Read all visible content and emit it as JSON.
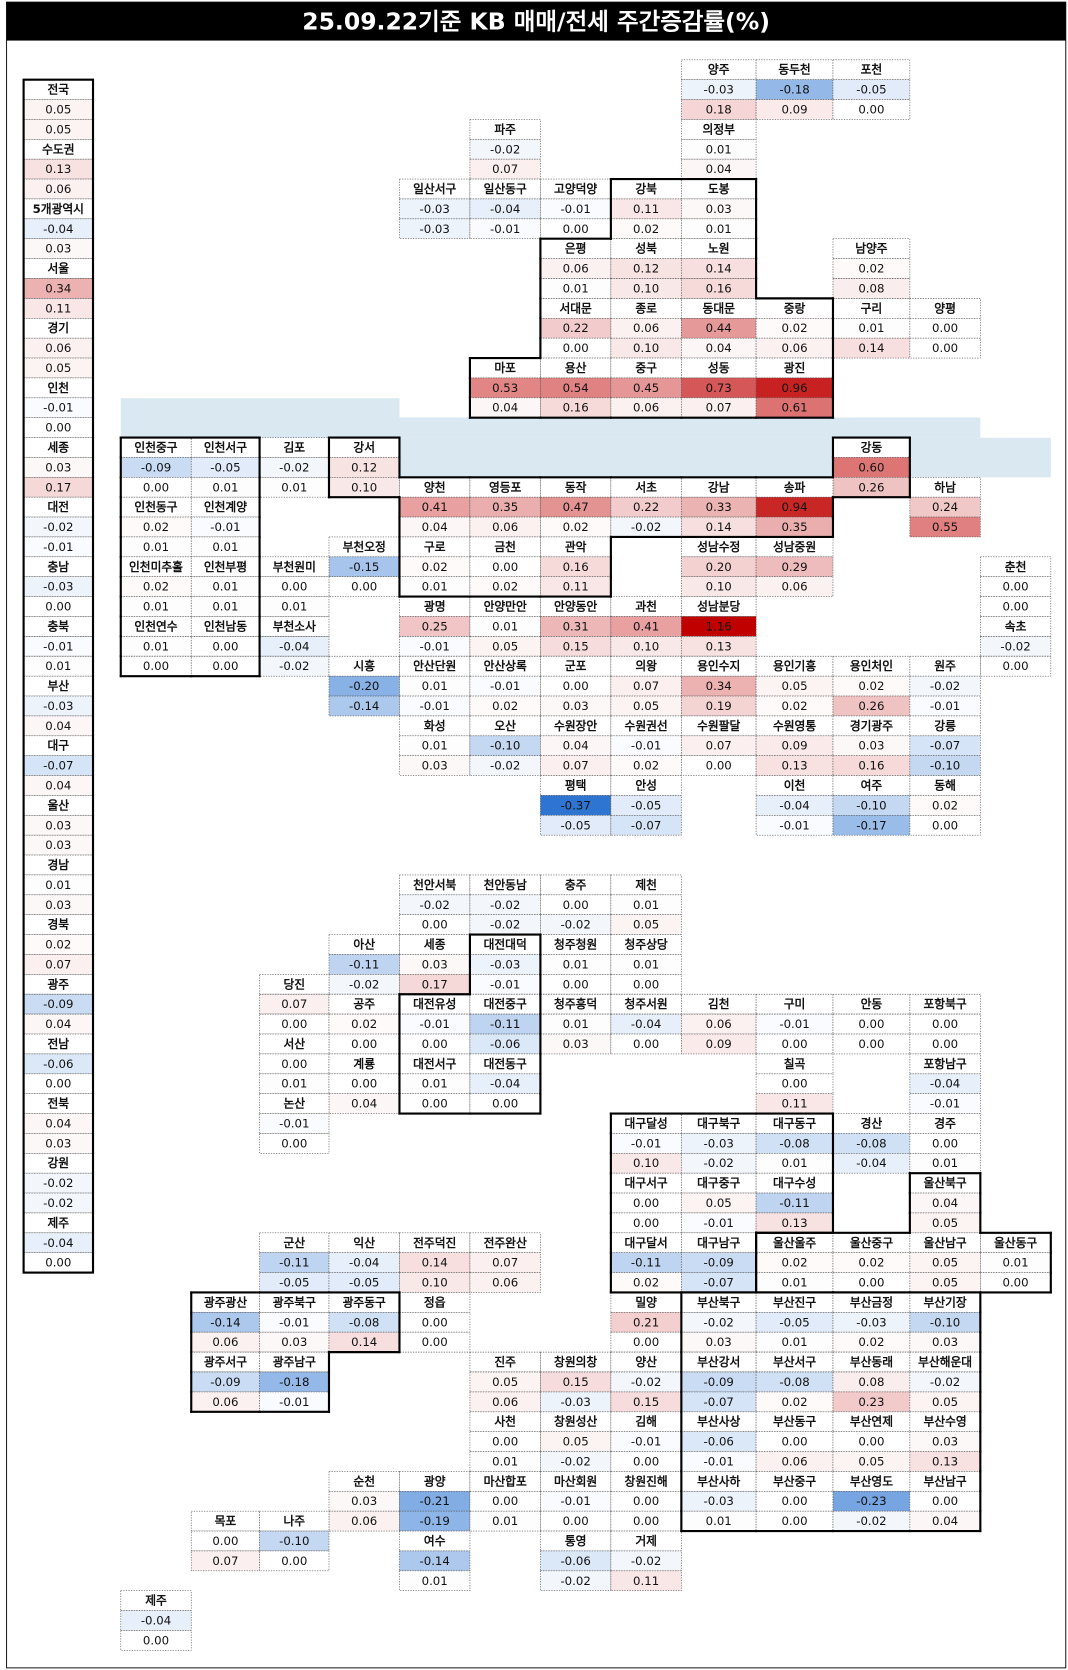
{
  "title": "25.09.22기준 KB 매매/전세 주간증감률(%)",
  "colors": {
    "positive": "#c00000",
    "negative": "#2e75d2",
    "river": "#d9e8f1"
  },
  "summary": [
    {
      "name": "전국",
      "sale": "0.05",
      "jeonse": "0.05"
    },
    {
      "name": "수도권",
      "sale": "0.13",
      "jeonse": "0.06"
    },
    {
      "name": "5개광역시",
      "sale": "-0.04",
      "jeonse": "0.03"
    },
    {
      "name": "서울",
      "sale": "0.34",
      "jeonse": "0.11"
    },
    {
      "name": "경기",
      "sale": "0.06",
      "jeonse": "0.05"
    },
    {
      "name": "인천",
      "sale": "-0.01",
      "jeonse": "0.00"
    },
    {
      "name": "세종",
      "sale": "0.03",
      "jeonse": "0.17"
    },
    {
      "name": "대전",
      "sale": "-0.02",
      "jeonse": "-0.01"
    },
    {
      "name": "충남",
      "sale": "-0.03",
      "jeonse": "0.00"
    },
    {
      "name": "충북",
      "sale": "-0.01",
      "jeonse": "0.01"
    },
    {
      "name": "부산",
      "sale": "-0.03",
      "jeonse": "0.04"
    },
    {
      "name": "대구",
      "sale": "-0.07",
      "jeonse": "0.04"
    },
    {
      "name": "울산",
      "sale": "0.03",
      "jeonse": "0.03"
    },
    {
      "name": "경남",
      "sale": "0.01",
      "jeonse": "0.03"
    },
    {
      "name": "경북",
      "sale": "0.02",
      "jeonse": "0.07"
    },
    {
      "name": "광주",
      "sale": "-0.09",
      "jeonse": "0.04"
    },
    {
      "name": "전남",
      "sale": "-0.06",
      "jeonse": "0.00"
    },
    {
      "name": "전북",
      "sale": "0.04",
      "jeonse": "0.03"
    },
    {
      "name": "강원",
      "sale": "-0.02",
      "jeonse": "-0.02"
    },
    {
      "name": "제주",
      "sale": "-0.04",
      "jeonse": "0.00"
    }
  ],
  "regions": [
    {
      "name": "양주",
      "sale": "-0.03",
      "jeonse": "0.18"
    },
    {
      "name": "동두천",
      "sale": "-0.18",
      "jeonse": "0.09"
    },
    {
      "name": "포천",
      "sale": "-0.05",
      "jeonse": "0.00"
    },
    {
      "name": "파주",
      "sale": "-0.02",
      "jeonse": "0.07"
    },
    {
      "name": "의정부",
      "sale": "0.01",
      "jeonse": "0.04"
    },
    {
      "name": "일산서구",
      "sale": "-0.03",
      "jeonse": "-0.03"
    },
    {
      "name": "일산동구",
      "sale": "-0.04",
      "jeonse": "-0.01"
    },
    {
      "name": "고양덕양",
      "sale": "-0.01",
      "jeonse": "0.00"
    },
    {
      "name": "강북",
      "sale": "0.11",
      "jeonse": "0.02"
    },
    {
      "name": "도봉",
      "sale": "0.03",
      "jeonse": "0.01"
    },
    {
      "name": "은평",
      "sale": "0.06",
      "jeonse": "0.01"
    },
    {
      "name": "성북",
      "sale": "0.12",
      "jeonse": "0.10"
    },
    {
      "name": "노원",
      "sale": "0.14",
      "jeonse": "0.16"
    },
    {
      "name": "남양주",
      "sale": "0.02",
      "jeonse": "0.08"
    },
    {
      "name": "서대문",
      "sale": "0.22",
      "jeonse": "0.00"
    },
    {
      "name": "종로",
      "sale": "0.06",
      "jeonse": "0.10"
    },
    {
      "name": "동대문",
      "sale": "0.44",
      "jeonse": "0.04"
    },
    {
      "name": "중랑",
      "sale": "0.02",
      "jeonse": "0.06"
    },
    {
      "name": "구리",
      "sale": "0.01",
      "jeonse": "0.14"
    },
    {
      "name": "양평",
      "sale": "0.00",
      "jeonse": "0.00"
    },
    {
      "name": "마포",
      "sale": "0.53",
      "jeonse": "0.04"
    },
    {
      "name": "용산",
      "sale": "0.54",
      "jeonse": "0.16"
    },
    {
      "name": "중구",
      "sale": "0.45",
      "jeonse": "0.06"
    },
    {
      "name": "성동",
      "sale": "0.73",
      "jeonse": "0.07"
    },
    {
      "name": "광진",
      "sale": "0.96",
      "jeonse": "0.61"
    },
    {
      "name": "인천중구",
      "sale": "-0.09",
      "jeonse": "0.00"
    },
    {
      "name": "인천서구",
      "sale": "-0.05",
      "jeonse": "0.01"
    },
    {
      "name": "김포",
      "sale": "-0.02",
      "jeonse": "0.01"
    },
    {
      "name": "강서",
      "sale": "0.12",
      "jeonse": "0.10"
    },
    {
      "name": "강동",
      "sale": "0.60",
      "jeonse": "0.26"
    },
    {
      "name": "양천",
      "sale": "0.41",
      "jeonse": "0.04"
    },
    {
      "name": "영등포",
      "sale": "0.35",
      "jeonse": "0.06"
    },
    {
      "name": "동작",
      "sale": "0.47",
      "jeonse": "0.02"
    },
    {
      "name": "서초",
      "sale": "0.22",
      "jeonse": "-0.02"
    },
    {
      "name": "강남",
      "sale": "0.33",
      "jeonse": "0.14"
    },
    {
      "name": "송파",
      "sale": "0.94",
      "jeonse": "0.35"
    },
    {
      "name": "하남",
      "sale": "0.24",
      "jeonse": "0.55"
    },
    {
      "name": "인천동구",
      "sale": "0.02",
      "jeonse": "0.01"
    },
    {
      "name": "인천계양",
      "sale": "-0.01",
      "jeonse": "0.01"
    },
    {
      "name": "부천오정",
      "sale": "-0.15",
      "jeonse": "0.00"
    },
    {
      "name": "구로",
      "sale": "0.02",
      "jeonse": "0.01"
    },
    {
      "name": "금천",
      "sale": "0.00",
      "jeonse": "0.02"
    },
    {
      "name": "관악",
      "sale": "0.16",
      "jeonse": "0.11"
    },
    {
      "name": "성남수정",
      "sale": "0.20",
      "jeonse": "0.10"
    },
    {
      "name": "성남중원",
      "sale": "0.29",
      "jeonse": "0.06"
    },
    {
      "name": "인천미추홀",
      "sale": "0.02",
      "jeonse": "0.01"
    },
    {
      "name": "인천부평",
      "sale": "0.01",
      "jeonse": "0.01"
    },
    {
      "name": "부천원미",
      "sale": "0.00",
      "jeonse": "0.01"
    },
    {
      "name": "춘천",
      "sale": "0.00",
      "jeonse": "0.00"
    },
    {
      "name": "광명",
      "sale": "0.25",
      "jeonse": "-0.01"
    },
    {
      "name": "안양만안",
      "sale": "0.01",
      "jeonse": "0.05"
    },
    {
      "name": "안양동안",
      "sale": "0.31",
      "jeonse": "0.15"
    },
    {
      "name": "과천",
      "sale": "0.41",
      "jeonse": "0.10"
    },
    {
      "name": "성남분당",
      "sale": "1.16",
      "jeonse": "0.13"
    },
    {
      "name": "인천연수",
      "sale": "0.01",
      "jeonse": "0.00"
    },
    {
      "name": "인천남동",
      "sale": "0.00",
      "jeonse": "0.00"
    },
    {
      "name": "부천소사",
      "sale": "-0.04",
      "jeonse": "-0.02"
    },
    {
      "name": "속초",
      "sale": "-0.02",
      "jeonse": "0.00"
    },
    {
      "name": "시흥",
      "sale": "-0.20",
      "jeonse": "-0.14"
    },
    {
      "name": "안산단원",
      "sale": "0.01",
      "jeonse": "-0.01"
    },
    {
      "name": "안산상록",
      "sale": "-0.01",
      "jeonse": "0.02"
    },
    {
      "name": "군포",
      "sale": "0.00",
      "jeonse": "0.03"
    },
    {
      "name": "의왕",
      "sale": "0.07",
      "jeonse": "0.05"
    },
    {
      "name": "용인수지",
      "sale": "0.34",
      "jeonse": "0.19"
    },
    {
      "name": "용인기흥",
      "sale": "0.05",
      "jeonse": "0.02"
    },
    {
      "name": "용인처인",
      "sale": "0.02",
      "jeonse": "0.26"
    },
    {
      "name": "원주",
      "sale": "-0.02",
      "jeonse": "-0.01"
    },
    {
      "name": "화성",
      "sale": "0.01",
      "jeonse": "0.03"
    },
    {
      "name": "오산",
      "sale": "-0.10",
      "jeonse": "-0.02"
    },
    {
      "name": "수원장안",
      "sale": "0.04",
      "jeonse": "0.07"
    },
    {
      "name": "수원권선",
      "sale": "-0.01",
      "jeonse": "0.02"
    },
    {
      "name": "수원팔달",
      "sale": "0.07",
      "jeonse": "0.00"
    },
    {
      "name": "수원영통",
      "sale": "0.09",
      "jeonse": "0.13"
    },
    {
      "name": "경기광주",
      "sale": "0.03",
      "jeonse": "0.16"
    },
    {
      "name": "강릉",
      "sale": "-0.07",
      "jeonse": "-0.10"
    },
    {
      "name": "평택",
      "sale": "-0.37",
      "jeonse": "-0.05"
    },
    {
      "name": "안성",
      "sale": "-0.05",
      "jeonse": "-0.07"
    },
    {
      "name": "이천",
      "sale": "-0.04",
      "jeonse": "-0.01"
    },
    {
      "name": "여주",
      "sale": "-0.10",
      "jeonse": "-0.17"
    },
    {
      "name": "동해",
      "sale": "0.02",
      "jeonse": "0.00"
    },
    {
      "name": "천안서북",
      "sale": "-0.02",
      "jeonse": "0.00"
    },
    {
      "name": "천안동남",
      "sale": "-0.02",
      "jeonse": "-0.02"
    },
    {
      "name": "충주",
      "sale": "0.00",
      "jeonse": "-0.02"
    },
    {
      "name": "제천",
      "sale": "0.01",
      "jeonse": "0.05"
    },
    {
      "name": "아산",
      "sale": "-0.11",
      "jeonse": "-0.02"
    },
    {
      "name": "세종",
      "sale": "0.03",
      "jeonse": "0.17"
    },
    {
      "name": "대전대덕",
      "sale": "-0.03",
      "jeonse": "-0.01"
    },
    {
      "name": "청주청원",
      "sale": "0.01",
      "jeonse": "0.00"
    },
    {
      "name": "청주상당",
      "sale": "0.01",
      "jeonse": "0.00"
    },
    {
      "name": "당진",
      "sale": "0.07",
      "jeonse": "0.00"
    },
    {
      "name": "공주",
      "sale": "0.02",
      "jeonse": "0.00"
    },
    {
      "name": "대전유성",
      "sale": "-0.01",
      "jeonse": "0.00"
    },
    {
      "name": "대전중구",
      "sale": "-0.11",
      "jeonse": "-0.06"
    },
    {
      "name": "청주흥덕",
      "sale": "0.01",
      "jeonse": "0.03"
    },
    {
      "name": "청주서원",
      "sale": "-0.04",
      "jeonse": "0.00"
    },
    {
      "name": "김천",
      "sale": "0.06",
      "jeonse": "0.09"
    },
    {
      "name": "구미",
      "sale": "-0.01",
      "jeonse": "0.00"
    },
    {
      "name": "안동",
      "sale": "0.00",
      "jeonse": "0.00"
    },
    {
      "name": "포항북구",
      "sale": "0.00",
      "jeonse": "0.00"
    },
    {
      "name": "서산",
      "sale": "0.00",
      "jeonse": "0.01"
    },
    {
      "name": "계룡",
      "sale": "0.00",
      "jeonse": "0.04"
    },
    {
      "name": "대전서구",
      "sale": "0.01",
      "jeonse": "0.00"
    },
    {
      "name": "대전동구",
      "sale": "-0.04",
      "jeonse": "0.00"
    },
    {
      "name": "칠곡",
      "sale": "0.00",
      "jeonse": "0.11"
    },
    {
      "name": "포항남구",
      "sale": "-0.04",
      "jeonse": "-0.01"
    },
    {
      "name": "논산",
      "sale": "-0.01",
      "jeonse": "0.00"
    },
    {
      "name": "대구달성",
      "sale": "-0.01",
      "jeonse": "0.10"
    },
    {
      "name": "대구북구",
      "sale": "-0.03",
      "jeonse": "-0.02"
    },
    {
      "name": "대구동구",
      "sale": "-0.08",
      "jeonse": "0.01"
    },
    {
      "name": "경산",
      "sale": "-0.08",
      "jeonse": "-0.04"
    },
    {
      "name": "경주",
      "sale": "0.00",
      "jeonse": "0.01"
    },
    {
      "name": "대구서구",
      "sale": "0.00",
      "jeonse": "0.00"
    },
    {
      "name": "대구중구",
      "sale": "0.05",
      "jeonse": "-0.01"
    },
    {
      "name": "대구수성",
      "sale": "-0.11",
      "jeonse": "0.13"
    },
    {
      "name": "울산북구",
      "sale": "0.04",
      "jeonse": "0.05"
    },
    {
      "name": "군산",
      "sale": "-0.11",
      "jeonse": "-0.05"
    },
    {
      "name": "익산",
      "sale": "-0.04",
      "jeonse": "-0.05"
    },
    {
      "name": "전주덕진",
      "sale": "0.14",
      "jeonse": "0.10"
    },
    {
      "name": "전주완산",
      "sale": "0.07",
      "jeonse": "0.06"
    },
    {
      "name": "대구달서",
      "sale": "-0.11",
      "jeonse": "0.02"
    },
    {
      "name": "대구남구",
      "sale": "-0.09",
      "jeonse": "-0.07"
    },
    {
      "name": "울산울주",
      "sale": "0.02",
      "jeonse": "0.01"
    },
    {
      "name": "울산중구",
      "sale": "0.02",
      "jeonse": "0.00"
    },
    {
      "name": "울산남구",
      "sale": "0.05",
      "jeonse": "0.05"
    },
    {
      "name": "울산동구",
      "sale": "0.01",
      "jeonse": "0.00"
    },
    {
      "name": "광주광산",
      "sale": "-0.14",
      "jeonse": "0.06"
    },
    {
      "name": "광주북구",
      "sale": "-0.01",
      "jeonse": "0.03"
    },
    {
      "name": "광주동구",
      "sale": "-0.08",
      "jeonse": "0.14"
    },
    {
      "name": "정읍",
      "sale": "0.00",
      "jeonse": "0.00"
    },
    {
      "name": "밀양",
      "sale": "0.21",
      "jeonse": "0.00"
    },
    {
      "name": "부산북구",
      "sale": "-0.02",
      "jeonse": "0.03"
    },
    {
      "name": "부산진구",
      "sale": "-0.05",
      "jeonse": "0.01"
    },
    {
      "name": "부산금정",
      "sale": "-0.03",
      "jeonse": "0.02"
    },
    {
      "name": "부산기장",
      "sale": "-0.10",
      "jeonse": "0.03"
    },
    {
      "name": "광주서구",
      "sale": "-0.09",
      "jeonse": "0.06"
    },
    {
      "name": "광주남구",
      "sale": "-0.18",
      "jeonse": "-0.01"
    },
    {
      "name": "진주",
      "sale": "0.05",
      "jeonse": "0.06"
    },
    {
      "name": "창원의창",
      "sale": "0.15",
      "jeonse": "-0.03"
    },
    {
      "name": "양산",
      "sale": "-0.02",
      "jeonse": "0.15"
    },
    {
      "name": "부산강서",
      "sale": "-0.09",
      "jeonse": "-0.07"
    },
    {
      "name": "부산서구",
      "sale": "-0.08",
      "jeonse": "0.02"
    },
    {
      "name": "부산동래",
      "sale": "0.08",
      "jeonse": "0.23"
    },
    {
      "name": "부산해운대",
      "sale": "-0.02",
      "jeonse": "0.05"
    },
    {
      "name": "사천",
      "sale": "0.00",
      "jeonse": "0.01"
    },
    {
      "name": "창원성산",
      "sale": "0.05",
      "jeonse": "-0.02"
    },
    {
      "name": "김해",
      "sale": "-0.01",
      "jeonse": "0.00"
    },
    {
      "name": "부산사상",
      "sale": "-0.06",
      "jeonse": "-0.01"
    },
    {
      "name": "부산동구",
      "sale": "0.00",
      "jeonse": "0.06"
    },
    {
      "name": "부산연제",
      "sale": "0.00",
      "jeonse": "0.05"
    },
    {
      "name": "부산수영",
      "sale": "0.03",
      "jeonse": "0.13"
    },
    {
      "name": "순천",
      "sale": "0.03",
      "jeonse": "0.06"
    },
    {
      "name": "광양",
      "sale": "-0.21",
      "jeonse": "-0.19"
    },
    {
      "name": "마산합포",
      "sale": "0.00",
      "jeonse": "0.01"
    },
    {
      "name": "마산회원",
      "sale": "-0.01",
      "jeonse": "0.00"
    },
    {
      "name": "창원진해",
      "sale": "0.00",
      "jeonse": "0.00"
    },
    {
      "name": "부산사하",
      "sale": "-0.03",
      "jeonse": "0.01"
    },
    {
      "name": "부산중구",
      "sale": "0.00",
      "jeonse": "0.00"
    },
    {
      "name": "부산영도",
      "sale": "-0.23",
      "jeonse": "-0.02"
    },
    {
      "name": "부산남구",
      "sale": "0.00",
      "jeonse": "0.04"
    },
    {
      "name": "목포",
      "sale": "0.00",
      "jeonse": "0.07"
    },
    {
      "name": "나주",
      "sale": "-0.10",
      "jeonse": "0.00"
    },
    {
      "name": "여수",
      "sale": "-0.14",
      "jeonse": "0.01"
    },
    {
      "name": "통영",
      "sale": "-0.06",
      "jeonse": "-0.02"
    },
    {
      "name": "거제",
      "sale": "-0.02",
      "jeonse": "0.11"
    },
    {
      "name": "제주",
      "sale": "-0.04",
      "jeonse": "0.00"
    }
  ]
}
